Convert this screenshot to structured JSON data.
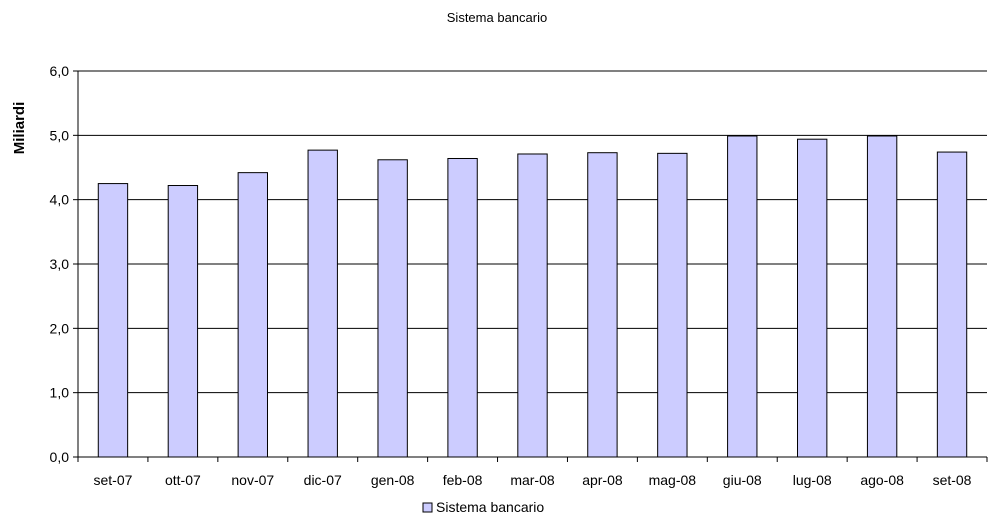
{
  "chart_data": {
    "type": "bar",
    "title": "Sistema bancario",
    "ylabel": "Miliardi",
    "xlabel": "",
    "categories": [
      "set-07",
      "ott-07",
      "nov-07",
      "dic-07",
      "gen-08",
      "feb-08",
      "mar-08",
      "apr-08",
      "mag-08",
      "giu-08",
      "lug-08",
      "ago-08",
      "set-08"
    ],
    "series": [
      {
        "name": "Sistema bancario",
        "values": [
          4.25,
          4.22,
          4.42,
          4.77,
          4.62,
          4.64,
          4.71,
          4.73,
          4.72,
          4.99,
          4.94,
          4.99,
          4.74
        ],
        "color": "#ccccff"
      }
    ],
    "ylim": [
      0,
      6
    ],
    "yticks": [
      "0,0",
      "1,0",
      "2,0",
      "3,0",
      "4,0",
      "5,0",
      "6,0"
    ],
    "grid": true,
    "legend_position": "bottom"
  }
}
